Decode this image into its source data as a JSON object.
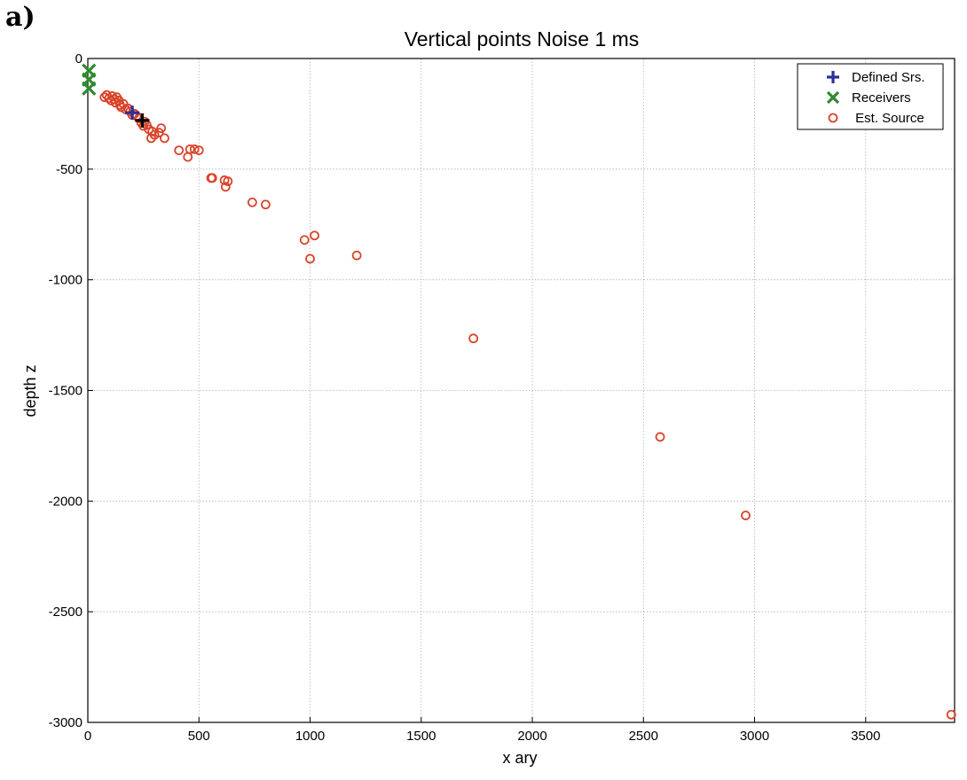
{
  "panel_label": "a)",
  "colors": {
    "defined_source": "#2b2f9a",
    "defined_source_dark": "#000000",
    "receivers": "#2f8a2f",
    "estimated_source": "#d9442b",
    "grid": "#b0b0b0"
  },
  "chart_data": {
    "type": "scatter",
    "title": "Vertical points  Noise 1 ms",
    "xlabel": "x ary",
    "ylabel": "depth z",
    "xlim": [
      0,
      3900
    ],
    "ylim": [
      -3000,
      0
    ],
    "xticks": [
      "0",
      "500",
      "1000",
      "1500",
      "2000",
      "2500",
      "3000",
      "3500"
    ],
    "yticks": [
      "0",
      "-500",
      "-1000",
      "-1500",
      "-2000",
      "-2500",
      "-3000"
    ],
    "grid": true,
    "legend_position": "top-right",
    "series": [
      {
        "name": "Defined Srs.",
        "marker": "plus",
        "points": [
          [
            200,
            -245
          ],
          [
            245,
            -280
          ]
        ]
      },
      {
        "name": "Receivers",
        "marker": "x",
        "points": [
          [
            5,
            -55
          ],
          [
            5,
            -95
          ],
          [
            5,
            -135
          ]
        ]
      },
      {
        "name": "Est. Source",
        "marker": "circle",
        "points": [
          [
            75,
            -175
          ],
          [
            85,
            -165
          ],
          [
            95,
            -180
          ],
          [
            105,
            -190
          ],
          [
            110,
            -170
          ],
          [
            120,
            -185
          ],
          [
            125,
            -200
          ],
          [
            130,
            -175
          ],
          [
            140,
            -190
          ],
          [
            145,
            -210
          ],
          [
            150,
            -220
          ],
          [
            160,
            -205
          ],
          [
            170,
            -230
          ],
          [
            180,
            -225
          ],
          [
            190,
            -240
          ],
          [
            200,
            -255
          ],
          [
            210,
            -250
          ],
          [
            220,
            -260
          ],
          [
            230,
            -270
          ],
          [
            240,
            -290
          ],
          [
            250,
            -305
          ],
          [
            255,
            -285
          ],
          [
            265,
            -300
          ],
          [
            275,
            -320
          ],
          [
            290,
            -330
          ],
          [
            300,
            -345
          ],
          [
            320,
            -335
          ],
          [
            330,
            -315
          ],
          [
            345,
            -360
          ],
          [
            285,
            -360
          ],
          [
            410,
            -415
          ],
          [
            450,
            -445
          ],
          [
            460,
            -410
          ],
          [
            480,
            -410
          ],
          [
            500,
            -415
          ],
          [
            555,
            -540
          ],
          [
            560,
            -540
          ],
          [
            615,
            -550
          ],
          [
            620,
            -580
          ],
          [
            630,
            -555
          ],
          [
            740,
            -650
          ],
          [
            800,
            -660
          ],
          [
            975,
            -820
          ],
          [
            1020,
            -800
          ],
          [
            1000,
            -905
          ],
          [
            1210,
            -890
          ],
          [
            1735,
            -1265
          ],
          [
            2575,
            -1710
          ],
          [
            2960,
            -2065
          ],
          [
            3885,
            -2965
          ]
        ]
      }
    ]
  }
}
